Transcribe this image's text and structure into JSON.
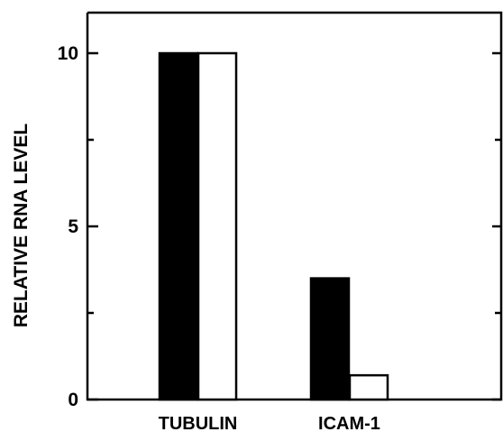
{
  "chart_data": {
    "type": "bar",
    "title": "",
    "xlabel": "",
    "ylabel": "RELATIVE RNA LEVEL",
    "categories": [
      "TUBULIN",
      "ICAM-1"
    ],
    "series": [
      {
        "values": [
          10,
          3.5
        ],
        "color": "#000000",
        "fill": "solid"
      },
      {
        "values": [
          10,
          0.7
        ],
        "color": "#ffffff",
        "fill": "open"
      }
    ],
    "ylim": [
      0,
      11
    ],
    "yticks": [
      0,
      5,
      10
    ],
    "ytick_labels": [
      "0",
      "5",
      "10"
    ],
    "minor_yticks": [
      2.5,
      7.5
    ],
    "grid": false,
    "legend": "none"
  }
}
